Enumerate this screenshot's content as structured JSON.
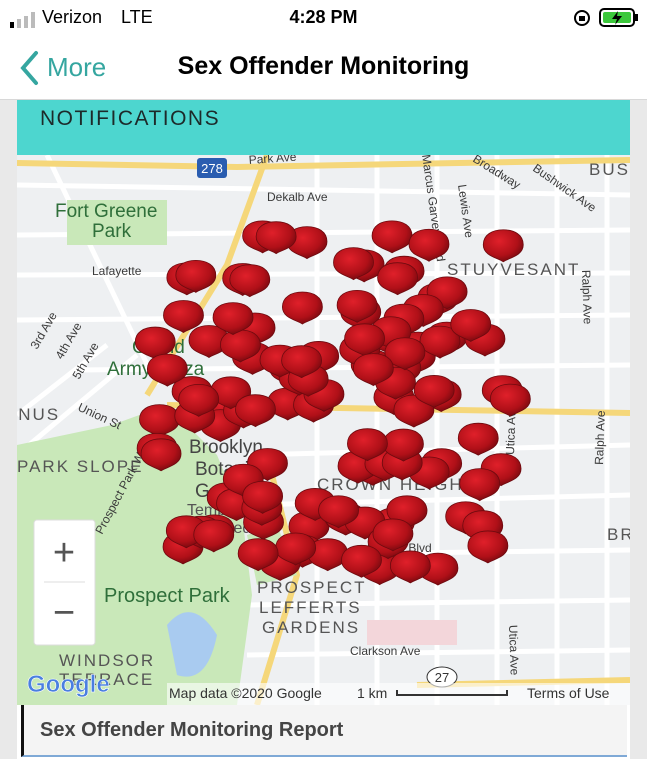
{
  "status_bar": {
    "carrier": "Verizon",
    "network": "LTE",
    "time": "4:28 PM"
  },
  "nav": {
    "back": "More",
    "title": "Sex Offender Monitoring"
  },
  "section": {
    "title": "NOTIFICATIONS"
  },
  "map": {
    "labels": [
      "Park Ave",
      "Dekalb Ave",
      "Broadway",
      "Bushwick Ave",
      "Marcus Garvey Blvd",
      "Lewis Ave",
      "Fort Greene",
      "Park",
      "Lafayette",
      "3rd Ave",
      "4th Ave",
      "5th Ave",
      "Grand",
      "Army Plaza",
      "Union St",
      "PARK SLOPE",
      "Prospect Park West",
      "Brooklyn",
      "Botanic",
      "Garden",
      "Temporarily",
      "closed",
      "Prospect Park",
      "PROSPECT",
      "LEFFERTS",
      "GARDENS",
      "WINDSOR",
      "TERRACE",
      "Empire Blvd",
      "Clarkson Ave",
      "Utica Ave",
      "Utica Ave",
      "Ralph Ave",
      "Ralph Ave",
      "BUS",
      "BR",
      "STUYVESANT",
      "CROWN HEIGHTS",
      "GOWANUS"
    ],
    "shields": [
      "278",
      "27"
    ],
    "logo": "Google",
    "attribution": "Map data ©2020 Google",
    "scale": "1 km",
    "terms": "Terms of Use",
    "zoom_in": "+",
    "zoom_out": "−"
  },
  "report": {
    "title": "Sex Offender Monitoring Report"
  }
}
